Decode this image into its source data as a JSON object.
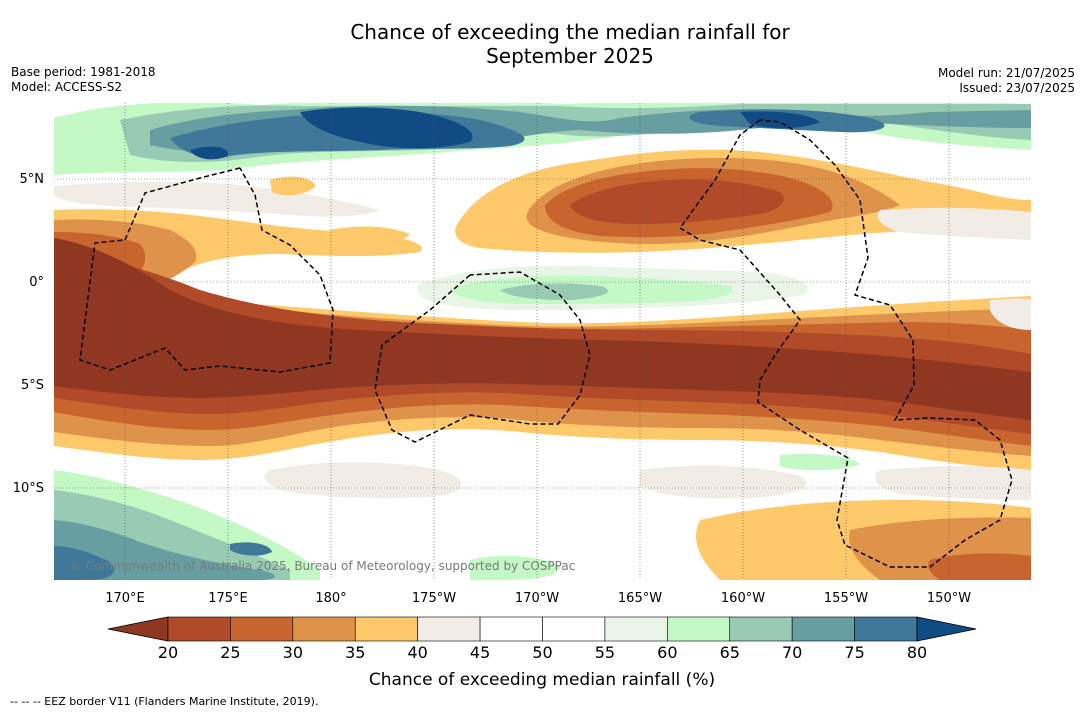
{
  "title_line1": "Chance of exceeding the median rainfall for",
  "title_line2": "September 2025",
  "base_period": "Base period: 1981-2018",
  "model": "Model: ACCESS-S2",
  "model_run": "Model run: 21/07/2025",
  "issued": "Issued: 23/07/2025",
  "copyright": "© Commonwealth of Australia 2025, Bureau of Meteorology, supported by COSPPac",
  "footnote": "-- -- -- EEZ border V11 (Flanders Marine Institute, 2019).",
  "map": {
    "lat_ticks": [
      "5°N",
      "0°",
      "5°S",
      "10°S"
    ],
    "lon_ticks": [
      "170°E",
      "175°E",
      "180°",
      "175°W",
      "170°W",
      "165°W",
      "160°W",
      "155°W",
      "150°W"
    ]
  },
  "colorbar": {
    "title": "Chance of exceeding median rainfall (%)",
    "ticks": [
      "20",
      "25",
      "30",
      "35",
      "40",
      "45",
      "50",
      "55",
      "60",
      "65",
      "70",
      "75",
      "80"
    ],
    "colors": [
      "#8f3720",
      "#b04a28",
      "#c8652e",
      "#df924a",
      "#fdc96a",
      "#f1ede6",
      "#ffffff",
      "#ffffff",
      "#e9f5e7",
      "#c4f8c4",
      "#98cab4",
      "#679ea1",
      "#3f7898",
      "#114b84"
    ]
  }
}
